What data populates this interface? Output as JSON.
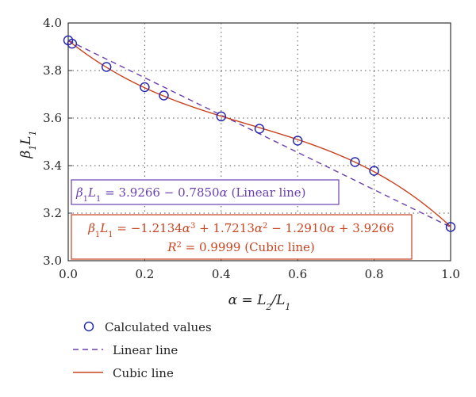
{
  "chart_data": {
    "type": "line",
    "xlabel": "α = L2/L1",
    "ylabel": "β1L1",
    "xlim": [
      0.0,
      1.0
    ],
    "ylim": [
      3.0,
      4.0
    ],
    "x_ticks": [
      "0.0",
      "0.2",
      "0.4",
      "0.6",
      "0.8",
      "1.0"
    ],
    "y_ticks": [
      "3.0",
      "3.2",
      "3.4",
      "3.6",
      "3.8",
      "4.0"
    ],
    "grid": true,
    "series": [
      {
        "name": "Calculated values",
        "kind": "scatter",
        "color": "#2b2bb0",
        "x": [
          0.0,
          0.01,
          0.1,
          0.2,
          0.25,
          0.4,
          0.5,
          0.6,
          0.75,
          0.8,
          1.0
        ],
        "y": [
          3.927,
          3.913,
          3.815,
          3.73,
          3.695,
          3.607,
          3.555,
          3.505,
          3.415,
          3.378,
          3.142
        ]
      },
      {
        "name": "Linear line",
        "kind": "line",
        "dash": true,
        "color": "#6a3fb0",
        "coefficients": [
          3.9266,
          -0.785
        ]
      },
      {
        "name": "Cubic line",
        "kind": "line",
        "color": "#c9431f",
        "coefficients": [
          3.9266,
          -1.291,
          1.7213,
          -1.2134
        ]
      }
    ],
    "annotations": {
      "linear_eq": {
        "color": "#6a3fb0",
        "lhs": "β",
        "lhs_sub1": "1",
        "lhs_l": "L",
        "lhs_sub2": "1",
        "rhs": " = 3.9266 − 0.7850",
        "var": "α",
        "tail": " (Linear line)"
      },
      "cubic_eq": {
        "color": "#c9431f",
        "lhs": "β",
        "lhs_sub1": "1",
        "lhs_l": "L",
        "lhs_sub2": "1",
        "part1": " = −1.2134",
        "var": "α",
        "exp3": "3",
        "part2": " + 1.7213",
        "exp2": "2",
        "part3": " − 1.2910",
        "part4": " + 3.9266",
        "r2": "R",
        "r2_exp": "2",
        "r2_val": " = 0.9999 (Cubic line)"
      }
    },
    "legend": {
      "placement": "bottom",
      "entries": [
        "Calculated values",
        "Linear line",
        "Cubic line"
      ]
    }
  }
}
